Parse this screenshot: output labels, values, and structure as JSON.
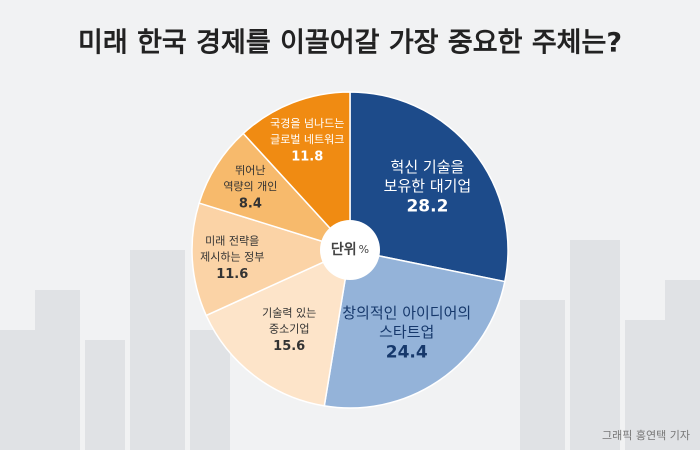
{
  "chart_data": {
    "type": "pie",
    "title": "미래 한국 경제를 이끌어갈 가장 중요한 주체는?",
    "categories": [
      [
        "혁신 기술을",
        "보유한 대기업"
      ],
      [
        "창의적인 아이디어의",
        "스타트업"
      ],
      [
        "기술력 있는",
        "중소기업"
      ],
      [
        "미래 전략을",
        "제시하는 정부"
      ],
      [
        "뛰어난",
        "역량의 개인"
      ],
      [
        "국경을 넘나드는",
        "글로벌 네트워크"
      ]
    ],
    "values": [
      28.2,
      24.4,
      15.6,
      11.6,
      8.4,
      11.8
    ],
    "colors": [
      "#1d4b8a",
      "#94b3d9",
      "#fde4c9",
      "#fbd3a6",
      "#f7ba6c",
      "#f08b12"
    ],
    "label_colors": [
      "#ffffff",
      "#16386b",
      "#333333",
      "#333333",
      "#333333",
      "#ffffff"
    ],
    "unit_label": "단위",
    "unit": "%",
    "source": "그래픽 홍연택 기자"
  }
}
